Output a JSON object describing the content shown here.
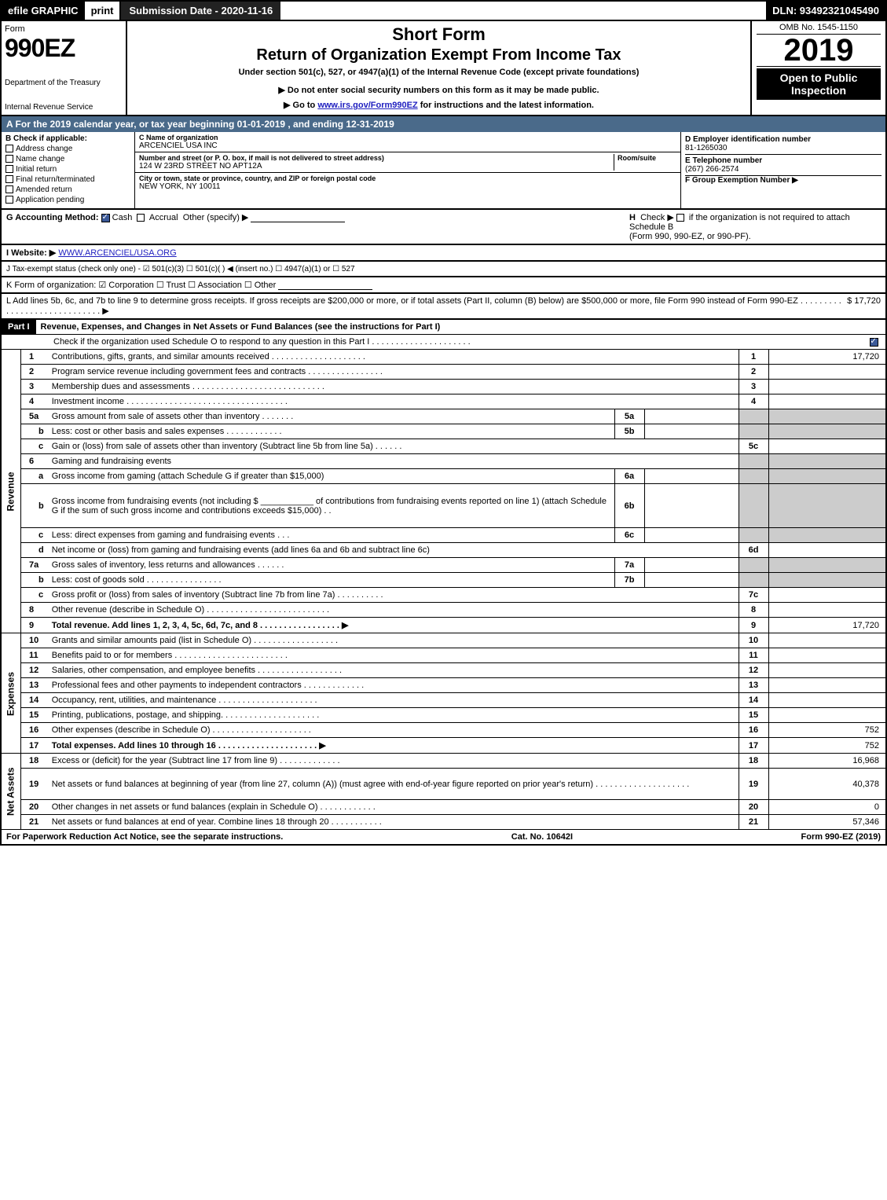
{
  "colors": {
    "black": "#000000",
    "white": "#ffffff",
    "header_blue": "#4a6a8a",
    "shaded_grey": "#cccccc",
    "link_blue": "#2020c0",
    "check_blue": "#3b5998"
  },
  "top_bar": {
    "efile": "efile GRAPHIC",
    "print": "print",
    "submission": "Submission Date - 2020-11-16",
    "dln": "DLN: 93492321045490"
  },
  "header": {
    "form_label": "Form",
    "form_number": "990EZ",
    "dept": "Department of the Treasury",
    "irs": "Internal Revenue Service",
    "short_form": "Short Form",
    "return_title": "Return of Organization Exempt From Income Tax",
    "subtitle": "Under section 501(c), 527, or 4947(a)(1) of the Internal Revenue Code (except private foundations)",
    "notice": "▶ Do not enter social security numbers on this form as it may be made public.",
    "goto_pre": "▶ Go to ",
    "goto_link": "www.irs.gov/Form990EZ",
    "goto_post": " for instructions and the latest information.",
    "omb": "OMB No. 1545-1150",
    "tax_year": "2019",
    "open_public": "Open to Public Inspection"
  },
  "section_a": "A For the 2019 calendar year, or tax year beginning 01-01-2019 , and ending 12-31-2019",
  "col_b": {
    "header": "B Check if applicable:",
    "items": [
      "Address change",
      "Name change",
      "Initial return",
      "Final return/terminated",
      "Amended return",
      "Application pending"
    ]
  },
  "col_c": {
    "name_label": "C Name of organization",
    "name_value": "ARCENCIEL USA INC",
    "street_label": "Number and street (or P. O. box, if mail is not delivered to street address)",
    "room_label": "Room/suite",
    "street_value": "124 W 23RD STREET NO APT12A",
    "city_label": "City or town, state or province, country, and ZIP or foreign postal code",
    "city_value": "NEW YORK, NY  10011"
  },
  "col_d": {
    "ein_label": "D Employer identification number",
    "ein_value": "81-1265030",
    "phone_label": "E Telephone number",
    "phone_value": "(267) 266-2574",
    "group_label": "F Group Exemption Number  ▶"
  },
  "g_h": {
    "g_label": "G Accounting Method:",
    "g_cash": "Cash",
    "g_accrual": "Accrual",
    "g_other": "Other (specify) ▶",
    "h_label": "H",
    "h_text1": "Check ▶",
    "h_text2": "if the organization is not required to attach Schedule B",
    "h_text3": "(Form 990, 990-EZ, or 990-PF)."
  },
  "i_line": {
    "label": "I Website: ▶",
    "value": "WWW.ARCENCIEL/USA.ORG"
  },
  "j_line": "J Tax-exempt status (check only one) -  ☑ 501(c)(3)  ☐ 501(c)(  ) ◀ (insert no.)  ☐ 4947(a)(1) or  ☐ 527",
  "k_line": "K Form of organization:   ☑ Corporation   ☐ Trust   ☐ Association   ☐ Other",
  "l_line": {
    "text": "L Add lines 5b, 6c, and 7b to line 9 to determine gross receipts. If gross receipts are $200,000 or more, or if total assets (Part II, column (B) below) are $500,000 or more, file Form 990 instead of Form 990-EZ  .  .  .  .  .  .  .  .  .  .  .  .  .  .  .  .  .  .  .  .  .  .  .  .  .  .  .  .  .  ▶",
    "value": "$ 17,720"
  },
  "part1": {
    "label": "Part I",
    "title": "Revenue, Expenses, and Changes in Net Assets or Fund Balances (see the instructions for Part I)",
    "check_line": "Check if the organization used Schedule O to respond to any question in this Part I  .  .  .  .  .  .  .  .  .  .  .  .  .  .  .  .  .  .  .  .  .",
    "checked": true
  },
  "side_labels": {
    "revenue": "Revenue",
    "expenses": "Expenses",
    "netassets": "Net Assets"
  },
  "rows": [
    {
      "n": "1",
      "desc": "Contributions, gifts, grants, and similar amounts received  .  .  .  .  .  .  .  .  .  .  .  .  .  .  .  .  .  .  .  .",
      "rn": "1",
      "rv": "17,720"
    },
    {
      "n": "2",
      "desc": "Program service revenue including government fees and contracts  .  .  .  .  .  .  .  .  .  .  .  .  .  .  .  .",
      "rn": "2",
      "rv": ""
    },
    {
      "n": "3",
      "desc": "Membership dues and assessments  .  .  .  .  .  .  .  .  .  .  .  .  .  .  .  .  .  .  .  .  .  .  .  .  .  .  .  .",
      "rn": "3",
      "rv": ""
    },
    {
      "n": "4",
      "desc": "Investment income  .  .  .  .  .  .  .  .  .  .  .  .  .  .  .  .  .  .  .  .  .  .  .  .  .  .  .  .  .  .  .  .  .  .",
      "rn": "4",
      "rv": ""
    },
    {
      "n": "5a",
      "desc": "Gross amount from sale of assets other than inventory  .  .  .  .  .  .  .",
      "mn": "5a",
      "mv": "",
      "shaded_right": true
    },
    {
      "n": "b",
      "sub": true,
      "desc": "Less: cost or other basis and sales expenses  .  .  .  .  .  .  .  .  .  .  .  .",
      "mn": "5b",
      "mv": "",
      "shaded_right": true
    },
    {
      "n": "c",
      "sub": true,
      "desc": "Gain or (loss) from sale of assets other than inventory (Subtract line 5b from line 5a)  .  .  .  .  .  .",
      "rn": "5c",
      "rv": ""
    },
    {
      "n": "6",
      "desc": "Gaming and fundraising events",
      "no_right": true
    },
    {
      "n": "a",
      "sub": true,
      "desc": "Gross income from gaming (attach Schedule G if greater than $15,000)",
      "mn": "6a",
      "mv": "",
      "shaded_right": true
    },
    {
      "n": "b",
      "sub": true,
      "desc": "Gross income from fundraising events (not including $ ___________ of contributions from fundraising events reported on line 1) (attach Schedule G if the sum of such gross income and contributions exceeds $15,000)    .  .",
      "mn": "6b",
      "mv": "",
      "shaded_right": true,
      "tall": true
    },
    {
      "n": "c",
      "sub": true,
      "desc": "Less: direct expenses from gaming and fundraising events    .  .  .",
      "mn": "6c",
      "mv": "",
      "shaded_right": true
    },
    {
      "n": "d",
      "sub": true,
      "desc": "Net income or (loss) from gaming and fundraising events (add lines 6a and 6b and subtract line 6c)",
      "rn": "6d",
      "rv": ""
    },
    {
      "n": "7a",
      "desc": "Gross sales of inventory, less returns and allowances  .  .  .  .  .  .",
      "mn": "7a",
      "mv": "",
      "shaded_right": true
    },
    {
      "n": "b",
      "sub": true,
      "desc": "Less: cost of goods sold    .  .  .  .  .  .  .  .  .  .  .  .  .  .  .  .",
      "mn": "7b",
      "mv": "",
      "shaded_right": true
    },
    {
      "n": "c",
      "sub": true,
      "desc": "Gross profit or (loss) from sales of inventory (Subtract line 7b from line 7a)  .  .  .  .  .  .  .  .  .  .",
      "rn": "7c",
      "rv": ""
    },
    {
      "n": "8",
      "desc": "Other revenue (describe in Schedule O)  .  .  .  .  .  .  .  .  .  .  .  .  .  .  .  .  .  .  .  .  .  .  .  .  .  .",
      "rn": "8",
      "rv": ""
    },
    {
      "n": "9",
      "desc": "Total revenue. Add lines 1, 2, 3, 4, 5c, 6d, 7c, and 8  .  .  .  .  .  .  .  .  .  .  .  .  .  .  .  .  .    ▶",
      "rn": "9",
      "rv": "17,720",
      "bold": true
    }
  ],
  "rows_exp": [
    {
      "n": "10",
      "desc": "Grants and similar amounts paid (list in Schedule O)  .  .  .  .  .  .  .  .  .  .  .  .  .  .  .  .  .  .",
      "rn": "10",
      "rv": ""
    },
    {
      "n": "11",
      "desc": "Benefits paid to or for members    .  .  .  .  .  .  .  .  .  .  .  .  .  .  .  .  .  .  .  .  .  .  .  .",
      "rn": "11",
      "rv": ""
    },
    {
      "n": "12",
      "desc": "Salaries, other compensation, and employee benefits  .  .  .  .  .  .  .  .  .  .  .  .  .  .  .  .  .  .",
      "rn": "12",
      "rv": ""
    },
    {
      "n": "13",
      "desc": "Professional fees and other payments to independent contractors  .  .  .  .  .  .  .  .  .  .  .  .  .",
      "rn": "13",
      "rv": ""
    },
    {
      "n": "14",
      "desc": "Occupancy, rent, utilities, and maintenance  .  .  .  .  .  .  .  .  .  .  .  .  .  .  .  .  .  .  .  .  .",
      "rn": "14",
      "rv": ""
    },
    {
      "n": "15",
      "desc": "Printing, publications, postage, and shipping.  .  .  .  .  .  .  .  .  .  .  .  .  .  .  .  .  .  .  .  .",
      "rn": "15",
      "rv": ""
    },
    {
      "n": "16",
      "desc": "Other expenses (describe in Schedule O)    .  .  .  .  .  .  .  .  .  .  .  .  .  .  .  .  .  .  .  .  .",
      "rn": "16",
      "rv": "752"
    },
    {
      "n": "17",
      "desc": "Total expenses. Add lines 10 through 16    .  .  .  .  .  .  .  .  .  .  .  .  .  .  .  .  .  .  .  .  . ▶",
      "rn": "17",
      "rv": "752",
      "bold": true
    }
  ],
  "rows_net": [
    {
      "n": "18",
      "desc": "Excess or (deficit) for the year (Subtract line 17 from line 9)      .  .  .  .  .  .  .  .  .  .  .  .  .",
      "rn": "18",
      "rv": "16,968"
    },
    {
      "n": "19",
      "desc": "Net assets or fund balances at beginning of year (from line 27, column (A)) (must agree with end-of-year figure reported on prior year's return)  .  .  .  .  .  .  .  .  .  .  .  .  .  .  .  .  .  .  .  .",
      "rn": "19",
      "rv": "40,378",
      "tall": true
    },
    {
      "n": "20",
      "desc": "Other changes in net assets or fund balances (explain in Schedule O)  .  .  .  .  .  .  .  .  .  .  .  .",
      "rn": "20",
      "rv": "0"
    },
    {
      "n": "21",
      "desc": "Net assets or fund balances at end of year. Combine lines 18 through 20  .  .  .  .  .  .  .  .  .  .  .",
      "rn": "21",
      "rv": "57,346"
    }
  ],
  "footer": {
    "left": "For Paperwork Reduction Act Notice, see the separate instructions.",
    "center": "Cat. No. 10642I",
    "right": "Form 990-EZ (2019)"
  }
}
